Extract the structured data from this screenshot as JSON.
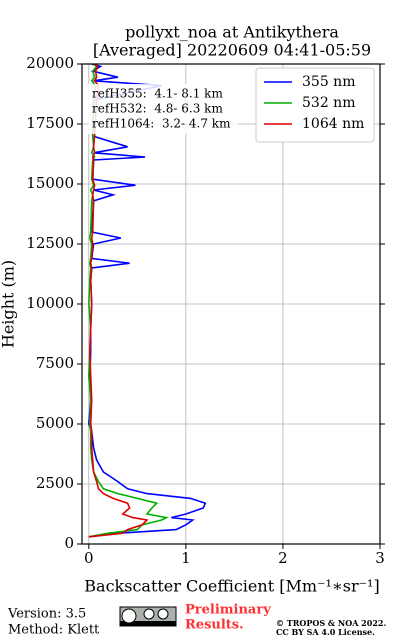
{
  "chart_data": {
    "type": "line",
    "title": "pollyxt_noa at Antikythera",
    "subtitle": "[Averaged] 20220609 04:41-05:59",
    "xlabel": "Backscatter Coefficient [Mm⁻¹∗sr⁻¹]",
    "ylabel": "Height (m)",
    "y": [
      300,
      450,
      600,
      800,
      1000,
      1100,
      1250,
      1500,
      1700,
      1900,
      2100,
      2300,
      2600,
      3000,
      3500,
      4000,
      4700,
      5000,
      6000,
      7000,
      8000,
      9000,
      10000,
      11000,
      11500,
      11700,
      11900,
      12500,
      12750,
      13000,
      14300,
      14550,
      14750,
      14950,
      15200,
      16000,
      16125,
      16300,
      16550,
      17000,
      18500,
      19100,
      19300,
      19450,
      19700,
      19900,
      20000
    ],
    "series": [
      {
        "name": "355 nm",
        "color": "#0000ff",
        "values": [
          0,
          0.3,
          0.9,
          1.0,
          1.07,
          0.85,
          1.0,
          1.18,
          1.2,
          1.05,
          0.6,
          0.4,
          0.3,
          0.15,
          0.08,
          0.05,
          0.03,
          0.0,
          0.02,
          0.01,
          0.02,
          0.02,
          0.03,
          0.02,
          0.03,
          0.42,
          0.03,
          0.05,
          0.33,
          0.03,
          0.05,
          0.25,
          0.05,
          0.48,
          0.04,
          0.05,
          0.58,
          0.05,
          0.4,
          0.04,
          0.05,
          0.75,
          0.05,
          0.3,
          0.04,
          0.12,
          0.03
        ]
      },
      {
        "name": "532 nm",
        "color": "#00b000",
        "values": [
          0,
          0.2,
          0.5,
          0.55,
          0.75,
          0.8,
          0.6,
          0.65,
          0.7,
          0.5,
          0.3,
          0.15,
          0.1,
          0.05,
          0.03,
          0.02,
          0.02,
          0.01,
          0.02,
          0.0,
          0.01,
          0.02,
          0.0,
          0.01,
          0.02,
          0.01,
          0.02,
          0.03,
          0.01,
          0.02,
          0.03,
          0.04,
          0.02,
          0.05,
          0.03,
          0.04,
          0.06,
          0.03,
          0.05,
          0.04,
          0.05,
          0.07,
          0.03,
          0.06,
          0.04,
          0.08,
          0.05
        ]
      },
      {
        "name": "1064 nm",
        "color": "#e00000",
        "values": [
          0,
          0.35,
          0.4,
          0.55,
          0.6,
          0.45,
          0.35,
          0.42,
          0.4,
          0.25,
          0.15,
          0.1,
          0.08,
          0.05,
          0.04,
          0.03,
          0.03,
          0.02,
          0.03,
          0.02,
          0.01,
          0.02,
          0.03,
          0.02,
          0.03,
          0.02,
          0.03,
          0.04,
          0.03,
          0.04,
          0.05,
          0.04,
          0.05,
          0.06,
          0.04,
          0.05,
          0.04,
          0.06,
          0.05,
          0.06,
          0.08,
          0.1,
          0.06,
          0.08,
          0.07,
          0.09,
          0.06
        ]
      }
    ],
    "xlim": [
      -0.07,
      3
    ],
    "xticks": [
      0,
      1,
      2,
      3
    ],
    "ylim": [
      0,
      20000
    ],
    "yticks": [
      0,
      2500,
      5000,
      7500,
      10000,
      12500,
      15000,
      17500,
      20000
    ],
    "grid": true,
    "legend": "upper right",
    "annotations": [
      "refH355:  4.1- 8.1 km",
      "refH532:  4.8- 6.3 km",
      "refH1064:  3.2- 4.7 km"
    ]
  },
  "footer": {
    "version": "Version: 3.5",
    "method": "Method: Klett",
    "preliminary": [
      "Preliminary",
      "Results."
    ],
    "copyright": [
      "© TROPOS & NOA 2022.",
      "CC BY SA 4.0 License."
    ]
  }
}
